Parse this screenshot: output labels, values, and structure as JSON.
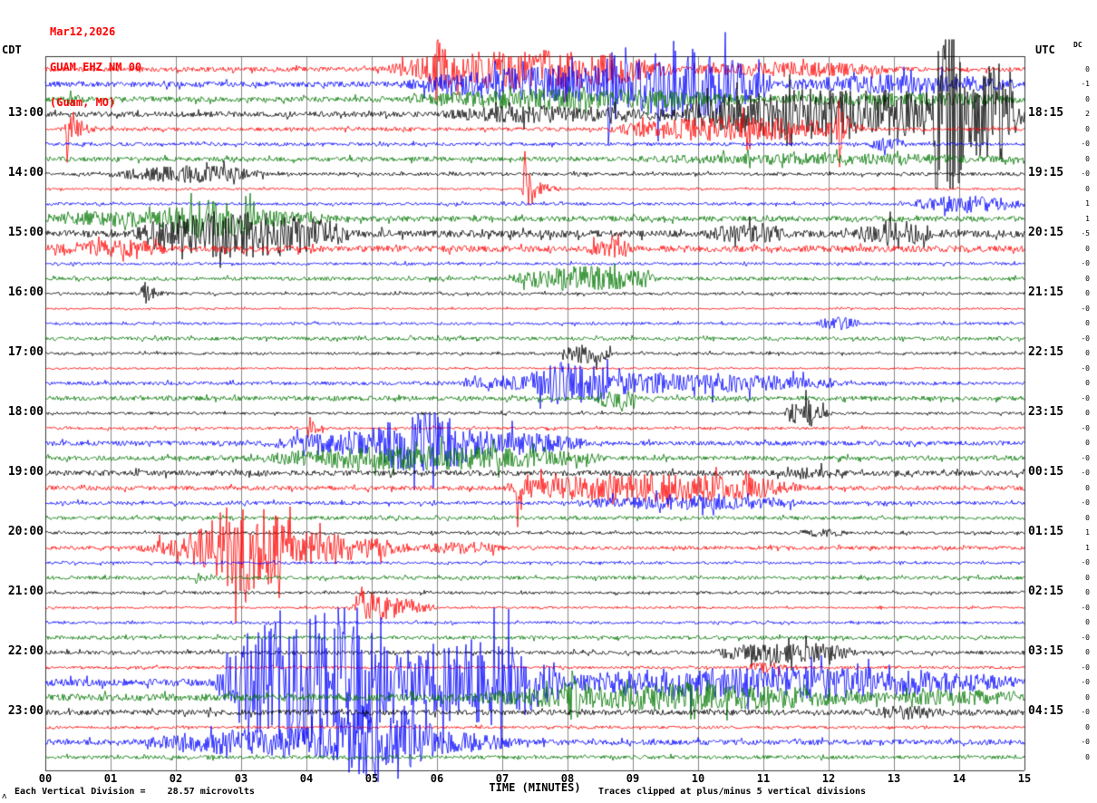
{
  "chart_data": {
    "type": "seismogram",
    "date": "Mar12,2026",
    "station": "GUAM EHZ NM 00",
    "location": "(Guam, MO)",
    "left_axis_label": "CDT",
    "right_axis_label": "UTC",
    "dc_column_label": "DC",
    "xlabel": "TIME (MINUTES)",
    "division_note": "Each Vertical Division =    28.57 microvolts",
    "clip_note": "Traces clipped at plus/minus 5 vertical divisions",
    "caret": "ʌ",
    "minutes_per_line": 15,
    "clip_divisions": 5,
    "x_ticks": [
      "00",
      "01",
      "02",
      "03",
      "04",
      "05",
      "06",
      "07",
      "08",
      "09",
      "10",
      "11",
      "12",
      "13",
      "14",
      "15"
    ],
    "colors": {
      "black": "#000000",
      "red": "#ff0000",
      "blue": "#0000ff",
      "green": "#007700"
    },
    "color_cycle": [
      "black",
      "red",
      "blue",
      "green"
    ],
    "rows": [
      {
        "color": "red",
        "base": 2.5,
        "left": "",
        "right": "",
        "dc": "0",
        "events": [
          {
            "t": 5.2,
            "d": 4.5,
            "a": 20,
            "s": "b"
          },
          {
            "t": 5.9,
            "d": 0.5,
            "a": 38,
            "s": "p"
          },
          {
            "t": 9.7,
            "d": 3.5,
            "a": 6,
            "s": "b"
          }
        ]
      },
      {
        "color": "blue",
        "base": 3,
        "left": "",
        "right": "",
        "dc": "-1",
        "events": [
          {
            "t": 5.5,
            "d": 5.5,
            "a": 18,
            "s": "b"
          },
          {
            "t": 8.6,
            "d": 0.3,
            "a": 60,
            "s": "p"
          },
          {
            "t": 8.8,
            "d": 2.4,
            "a": 22,
            "s": "b"
          },
          {
            "t": 11.2,
            "d": 3.8,
            "a": 8,
            "s": "b"
          }
        ]
      },
      {
        "color": "green",
        "base": 3,
        "left": "",
        "right": "",
        "dc": "0",
        "events": [
          {
            "t": 0.35,
            "d": 0.3,
            "a": 12,
            "s": "p"
          },
          {
            "t": 5.5,
            "d": 5.5,
            "a": 9,
            "s": "b"
          },
          {
            "t": 11,
            "d": 4,
            "a": 5,
            "s": "b"
          }
        ]
      },
      {
        "color": "black",
        "base": 3,
        "left": "13:00",
        "right": "18:15",
        "dc": "2",
        "events": [
          {
            "t": 6,
            "d": 3.5,
            "a": 7,
            "s": "b"
          },
          {
            "t": 9.5,
            "d": 5.5,
            "a": 26,
            "s": "b"
          },
          {
            "t": 13.6,
            "d": 0.5,
            "a": 85,
            "s": "b"
          },
          {
            "t": 14.1,
            "d": 0.9,
            "a": 45,
            "s": "b"
          }
        ]
      },
      {
        "color": "red",
        "base": 2,
        "left": "",
        "right": "",
        "dc": "0",
        "events": [
          {
            "t": 0.3,
            "d": 0.5,
            "a": 42,
            "s": "p"
          },
          {
            "t": 8.6,
            "d": 3.9,
            "a": 12,
            "s": "b"
          },
          {
            "t": 12.1,
            "d": 0.5,
            "a": 28,
            "s": "p"
          }
        ]
      },
      {
        "color": "blue",
        "base": 1.8,
        "left": "",
        "right": "",
        "dc": "-0",
        "events": [
          {
            "t": 12.6,
            "d": 0.6,
            "a": 6,
            "s": "b"
          }
        ]
      },
      {
        "color": "green",
        "base": 2.5,
        "left": "",
        "right": "",
        "dc": "0",
        "events": [
          {
            "t": 9,
            "d": 6,
            "a": 4,
            "s": "b"
          }
        ]
      },
      {
        "color": "black",
        "base": 1.8,
        "left": "14:00",
        "right": "19:15",
        "dc": "-0",
        "events": [
          {
            "t": 1,
            "d": 2.4,
            "a": 8,
            "s": "b"
          }
        ]
      },
      {
        "color": "red",
        "base": 1.2,
        "left": "",
        "right": "",
        "dc": "0",
        "events": [
          {
            "t": 7.3,
            "d": 0.6,
            "a": 42,
            "s": "p"
          }
        ]
      },
      {
        "color": "blue",
        "base": 1.5,
        "left": "",
        "right": "",
        "dc": "1",
        "events": [
          {
            "t": 13.2,
            "d": 1.8,
            "a": 8,
            "s": "b"
          }
        ]
      },
      {
        "color": "green",
        "base": 3,
        "left": "",
        "right": "",
        "dc": "1",
        "events": [
          {
            "t": 0,
            "d": 4.5,
            "a": 8,
            "s": "b"
          },
          {
            "t": 1.8,
            "d": 1.6,
            "a": 12,
            "s": "b"
          }
        ]
      },
      {
        "color": "black",
        "base": 4,
        "left": "15:00",
        "right": "20:15",
        "dc": "-5",
        "events": [
          {
            "t": 1.3,
            "d": 3.4,
            "a": 24,
            "s": "b"
          },
          {
            "t": 10.1,
            "d": 1.3,
            "a": 7,
            "s": "b"
          },
          {
            "t": 12.4,
            "d": 1.2,
            "a": 11,
            "s": "b"
          }
        ]
      },
      {
        "color": "red",
        "base": 3.5,
        "left": "",
        "right": "",
        "dc": "0",
        "events": [
          {
            "t": 0,
            "d": 2,
            "a": 7,
            "s": "b"
          },
          {
            "t": 8.3,
            "d": 0.7,
            "a": 9,
            "s": "b"
          }
        ]
      },
      {
        "color": "blue",
        "base": 1.5,
        "left": "",
        "right": "",
        "dc": "-0",
        "events": []
      },
      {
        "color": "green",
        "base": 2,
        "left": "",
        "right": "",
        "dc": "0",
        "events": [
          {
            "t": 7.1,
            "d": 2.3,
            "a": 12,
            "s": "b"
          }
        ]
      },
      {
        "color": "black",
        "base": 1.5,
        "left": "16:00",
        "right": "21:15",
        "dc": "0",
        "events": [
          {
            "t": 1.45,
            "d": 0.5,
            "a": 16,
            "s": "p"
          }
        ]
      },
      {
        "color": "red",
        "base": 1,
        "left": "",
        "right": "",
        "dc": "-0",
        "events": []
      },
      {
        "color": "blue",
        "base": 1.5,
        "left": "",
        "right": "",
        "dc": "0",
        "events": [
          {
            "t": 11.8,
            "d": 0.7,
            "a": 6,
            "s": "b"
          }
        ]
      },
      {
        "color": "green",
        "base": 2,
        "left": "",
        "right": "",
        "dc": "-0",
        "events": []
      },
      {
        "color": "black",
        "base": 1.5,
        "left": "17:00",
        "right": "22:15",
        "dc": "0",
        "events": [
          {
            "t": 7.9,
            "d": 0.8,
            "a": 10,
            "s": "b"
          }
        ]
      },
      {
        "color": "red",
        "base": 1,
        "left": "",
        "right": "",
        "dc": "-0",
        "events": []
      },
      {
        "color": "blue",
        "base": 2,
        "left": "",
        "right": "",
        "dc": "0",
        "events": [
          {
            "t": 6.3,
            "d": 6,
            "a": 10,
            "s": "b"
          },
          {
            "t": 7.4,
            "d": 1.3,
            "a": 15,
            "s": "b"
          }
        ]
      },
      {
        "color": "green",
        "base": 2.5,
        "left": "",
        "right": "",
        "dc": "-0",
        "events": [
          {
            "t": 8.4,
            "d": 0.7,
            "a": 9,
            "s": "b"
          }
        ]
      },
      {
        "color": "black",
        "base": 1.5,
        "left": "18:00",
        "right": "23:15",
        "dc": "0",
        "events": [
          {
            "t": 11.3,
            "d": 0.7,
            "a": 14,
            "s": "b"
          }
        ]
      },
      {
        "color": "red",
        "base": 1.5,
        "left": "",
        "right": "",
        "dc": "-0",
        "events": [
          {
            "t": 4,
            "d": 0.4,
            "a": 12,
            "s": "p"
          }
        ]
      },
      {
        "color": "blue",
        "base": 2.5,
        "left": "",
        "right": "",
        "dc": "0",
        "events": [
          {
            "t": 3.4,
            "d": 5,
            "a": 14,
            "s": "b"
          },
          {
            "t": 5,
            "d": 1.6,
            "a": 18,
            "s": "b"
          }
        ]
      },
      {
        "color": "green",
        "base": 2.5,
        "left": "",
        "right": "",
        "dc": "-0",
        "events": [
          {
            "t": 3,
            "d": 5.7,
            "a": 11,
            "s": "b"
          }
        ]
      },
      {
        "color": "black",
        "base": 3,
        "left": "19:00",
        "right": "00:15",
        "dc": "-0",
        "events": [
          {
            "t": 11.2,
            "d": 1,
            "a": 4,
            "s": "b"
          }
        ]
      },
      {
        "color": "red",
        "base": 2.5,
        "left": "",
        "right": "",
        "dc": "0",
        "events": [
          {
            "t": 7,
            "d": 4.7,
            "a": 14,
            "s": "b"
          },
          {
            "t": 7.2,
            "d": 0.5,
            "a": 26,
            "s": "p"
          }
        ]
      },
      {
        "color": "blue",
        "base": 2,
        "left": "",
        "right": "",
        "dc": "-0",
        "events": [
          {
            "t": 8,
            "d": 3.7,
            "a": 6,
            "s": "b"
          }
        ]
      },
      {
        "color": "green",
        "base": 2,
        "left": "",
        "right": "",
        "dc": "0",
        "events": []
      },
      {
        "color": "black",
        "base": 1.5,
        "left": "20:00",
        "right": "01:15",
        "dc": "1",
        "events": [
          {
            "t": 11.5,
            "d": 0.8,
            "a": 3,
            "s": "b"
          }
        ]
      },
      {
        "color": "red",
        "base": 2,
        "left": "",
        "right": "",
        "dc": "1",
        "events": [
          {
            "t": 1.4,
            "d": 4.3,
            "a": 16,
            "s": "b"
          },
          {
            "t": 2.2,
            "d": 1.6,
            "a": 32,
            "s": "b"
          },
          {
            "t": 5.7,
            "d": 1.4,
            "a": 5,
            "s": "b"
          }
        ]
      },
      {
        "color": "blue",
        "base": 1.5,
        "left": "",
        "right": "",
        "dc": "-0",
        "events": []
      },
      {
        "color": "green",
        "base": 2,
        "left": "",
        "right": "",
        "dc": "0",
        "events": [
          {
            "t": 2.3,
            "d": 0.3,
            "a": 6,
            "s": "p"
          }
        ]
      },
      {
        "color": "black",
        "base": 1.5,
        "left": "21:00",
        "right": "02:15",
        "dc": "0",
        "events": []
      },
      {
        "color": "red",
        "base": 1.2,
        "left": "",
        "right": "",
        "dc": "-0",
        "events": [
          {
            "t": 4.75,
            "d": 0.6,
            "a": 30,
            "s": "p"
          },
          {
            "t": 4.6,
            "d": 1.4,
            "a": 10,
            "s": "b"
          }
        ]
      },
      {
        "color": "blue",
        "base": 1.5,
        "left": "",
        "right": "",
        "dc": "0",
        "events": []
      },
      {
        "color": "green",
        "base": 2,
        "left": "",
        "right": "",
        "dc": "-0",
        "events": []
      },
      {
        "color": "black",
        "base": 2,
        "left": "22:00",
        "right": "03:15",
        "dc": "0",
        "events": [
          {
            "t": 10.2,
            "d": 2.3,
            "a": 10,
            "s": "b"
          }
        ]
      },
      {
        "color": "red",
        "base": 1.5,
        "left": "",
        "right": "",
        "dc": "-0",
        "events": [
          {
            "t": 10.7,
            "d": 0.7,
            "a": 5,
            "s": "b"
          }
        ]
      },
      {
        "color": "blue",
        "base": 4,
        "left": "",
        "right": "",
        "dc": "-0",
        "events": [
          {
            "t": 2.6,
            "d": 2.9,
            "a": 85,
            "s": "b"
          },
          {
            "t": 5.3,
            "d": 2.6,
            "a": 45,
            "s": "b"
          },
          {
            "t": 7.6,
            "d": 7.4,
            "a": 14,
            "s": "b"
          }
        ]
      },
      {
        "color": "green",
        "base": 4,
        "left": "",
        "right": "",
        "dc": "0",
        "events": [
          {
            "t": 6.5,
            "d": 6.5,
            "a": 11,
            "s": "b"
          },
          {
            "t": 8,
            "d": 0.5,
            "a": 24,
            "s": "p"
          },
          {
            "t": 13,
            "d": 2,
            "a": 6,
            "s": "b"
          }
        ]
      },
      {
        "color": "black",
        "base": 3,
        "left": "23:00",
        "right": "04:15",
        "dc": "-0",
        "events": [
          {
            "t": 12.6,
            "d": 1.2,
            "a": 5,
            "s": "b"
          }
        ]
      },
      {
        "color": "red",
        "base": 1.5,
        "left": "",
        "right": "",
        "dc": "0",
        "events": []
      },
      {
        "color": "blue",
        "base": 3,
        "left": "",
        "right": "",
        "dc": "-0",
        "events": [
          {
            "t": 1.5,
            "d": 5.8,
            "a": 15,
            "s": "b"
          },
          {
            "t": 4.4,
            "d": 1.6,
            "a": 28,
            "s": "b"
          }
        ]
      },
      {
        "color": "green",
        "base": 2,
        "left": "",
        "right": "",
        "dc": "0",
        "events": []
      }
    ]
  }
}
